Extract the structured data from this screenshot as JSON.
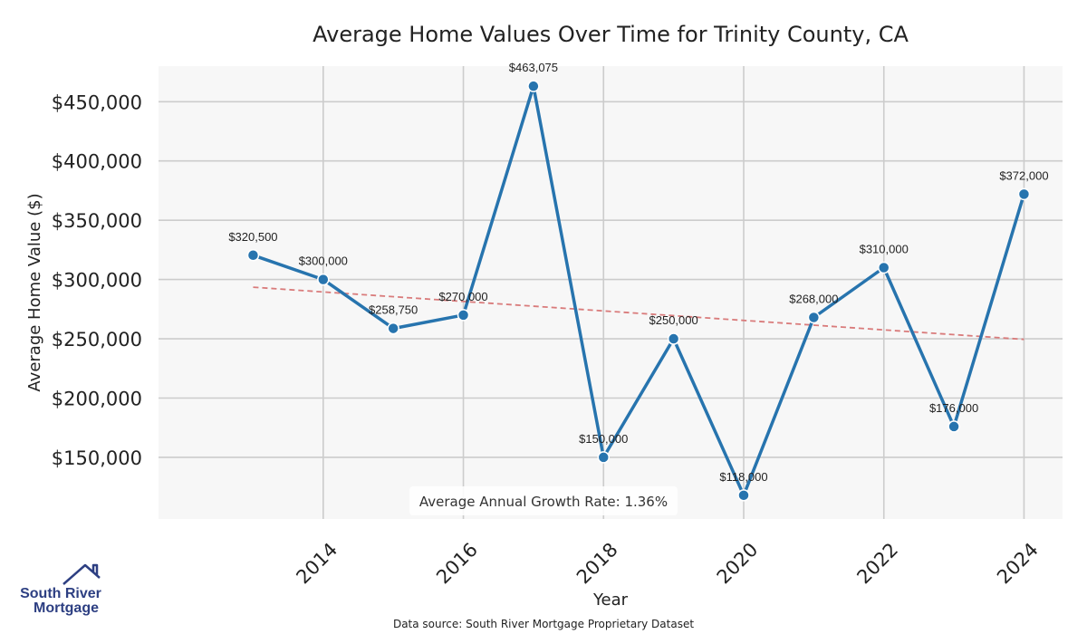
{
  "chart_data": {
    "type": "line",
    "title": "Average Home Values Over Time for Trinity County, CA",
    "xlabel": "Year",
    "ylabel": "Average Home Value ($)",
    "x": [
      2013,
      2014,
      2015,
      2016,
      2017,
      2018,
      2019,
      2020,
      2021,
      2022,
      2023,
      2024
    ],
    "values": [
      320500,
      300000,
      258750,
      270000,
      463075,
      150000,
      250000,
      118000,
      268000,
      310000,
      176000,
      372000
    ],
    "data_labels": [
      "$320,500",
      "$300,000",
      "$258,750",
      "$270,000",
      "$463,075",
      "$150,000",
      "$250,000",
      "$118,000",
      "$268,000",
      "$310,000",
      "$176,000",
      "$372,000"
    ],
    "x_ticks": [
      2014,
      2016,
      2018,
      2020,
      2022,
      2024
    ],
    "x_tick_labels": [
      "2014",
      "2016",
      "2018",
      "2020",
      "2022",
      "2024"
    ],
    "y_ticks": [
      150000,
      200000,
      250000,
      300000,
      350000,
      400000,
      450000
    ],
    "y_tick_labels": [
      "$150,000",
      "$200,000",
      "$250,000",
      "$300,000",
      "$350,000",
      "$400,000",
      "$450,000"
    ],
    "xlim": [
      2011.65,
      2024.55
    ],
    "ylim": [
      98000,
      480000
    ],
    "trend_line": {
      "x": [
        2013,
        2024
      ],
      "y": [
        293500,
        249500
      ]
    },
    "grid": true,
    "annotation": "Average Annual Growth Rate: 1.36%",
    "colors": {
      "line": "#2774ae",
      "trend": "#d97b7b",
      "grid": "#cccccc",
      "plot_bg": "#f7f7f7"
    }
  },
  "footer": {
    "source": "Data source: South River Mortgage Proprietary Dataset",
    "logo_line1": "South River",
    "logo_line2": "Mortgage"
  }
}
